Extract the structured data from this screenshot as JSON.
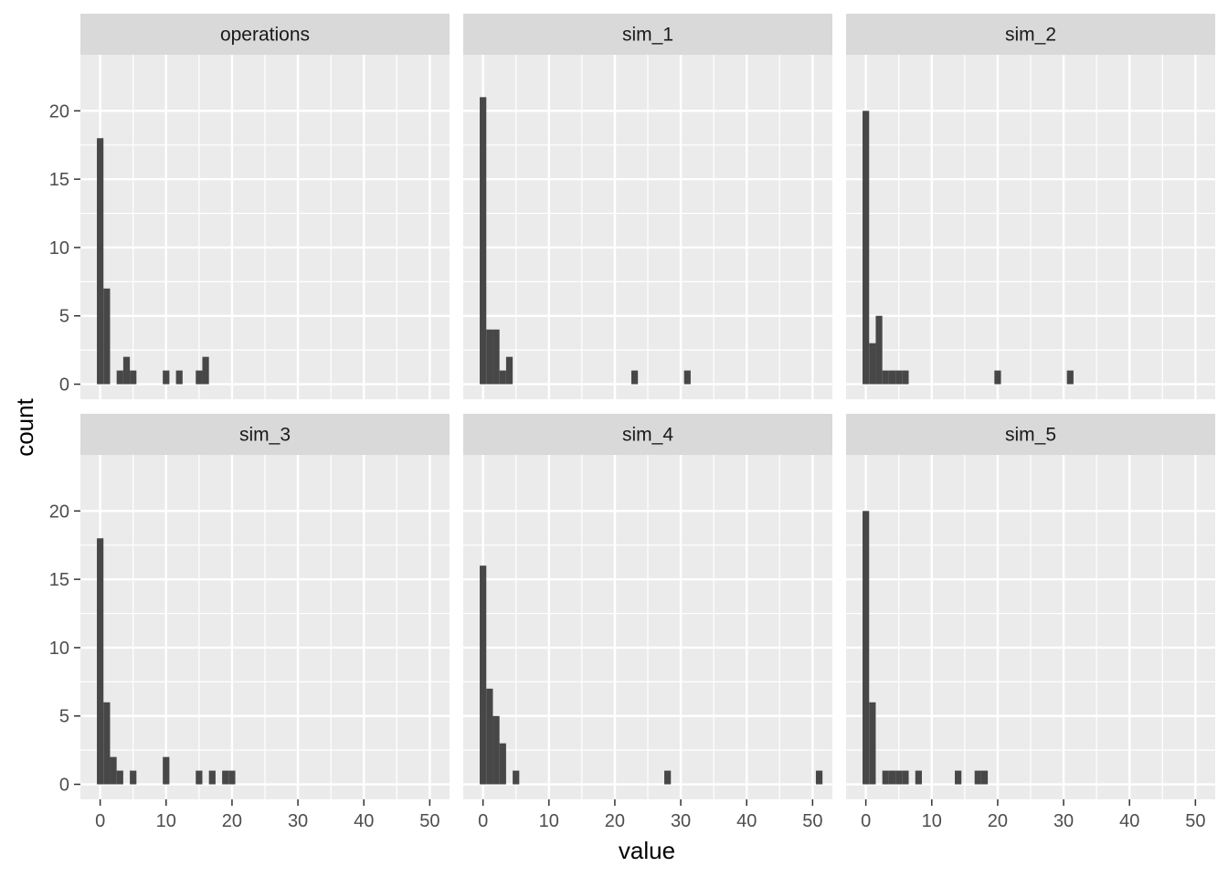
{
  "chart_data": {
    "type": "bar",
    "subtype": "faceted-histogram",
    "xlabel": "value",
    "ylabel": "count",
    "xlim": [
      -3,
      53
    ],
    "ylim": [
      -1.1,
      24.1
    ],
    "x_ticks": [
      0,
      10,
      20,
      30,
      40,
      50
    ],
    "y_ticks": [
      0,
      5,
      10,
      15,
      20
    ],
    "bin_width": 1,
    "grid": true,
    "legend": "none",
    "colors": {
      "bar": "#474747",
      "panel": "#ebebeb",
      "strip": "#d9d9d9",
      "grid": "#ffffff"
    },
    "facets": [
      {
        "name": "operations",
        "bins": [
          [
            0,
            18
          ],
          [
            1,
            7
          ],
          [
            3,
            1
          ],
          [
            4,
            2
          ],
          [
            5,
            1
          ],
          [
            10,
            1
          ],
          [
            12,
            1
          ],
          [
            15,
            1
          ],
          [
            16,
            2
          ]
        ]
      },
      {
        "name": "sim_1",
        "bins": [
          [
            0,
            21
          ],
          [
            1,
            4
          ],
          [
            2,
            4
          ],
          [
            3,
            1
          ],
          [
            4,
            2
          ],
          [
            23,
            1
          ],
          [
            31,
            1
          ]
        ]
      },
      {
        "name": "sim_2",
        "bins": [
          [
            0,
            20
          ],
          [
            1,
            3
          ],
          [
            2,
            5
          ],
          [
            3,
            1
          ],
          [
            4,
            1
          ],
          [
            5,
            1
          ],
          [
            6,
            1
          ],
          [
            20,
            1
          ],
          [
            31,
            1
          ]
        ]
      },
      {
        "name": "sim_3",
        "bins": [
          [
            0,
            18
          ],
          [
            1,
            6
          ],
          [
            2,
            2
          ],
          [
            3,
            1
          ],
          [
            5,
            1
          ],
          [
            10,
            2
          ],
          [
            15,
            1
          ],
          [
            17,
            1
          ],
          [
            19,
            1
          ],
          [
            20,
            1
          ]
        ]
      },
      {
        "name": "sim_4",
        "bins": [
          [
            0,
            16
          ],
          [
            1,
            7
          ],
          [
            2,
            5
          ],
          [
            3,
            3
          ],
          [
            5,
            1
          ],
          [
            28,
            1
          ],
          [
            51,
            1
          ]
        ]
      },
      {
        "name": "sim_5",
        "bins": [
          [
            0,
            20
          ],
          [
            1,
            6
          ],
          [
            3,
            1
          ],
          [
            4,
            1
          ],
          [
            5,
            1
          ],
          [
            6,
            1
          ],
          [
            8,
            1
          ],
          [
            14,
            1
          ],
          [
            17,
            1
          ],
          [
            18,
            1
          ]
        ]
      }
    ]
  }
}
